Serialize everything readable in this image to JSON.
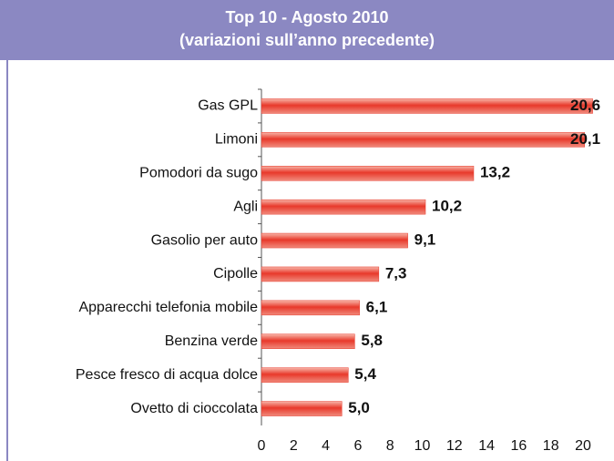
{
  "chart_data": {
    "type": "bar",
    "orientation": "horizontal",
    "title": "Top 10 - Agosto 2010",
    "subtitle": "(variazioni sull’anno precedente)",
    "categories": [
      "Gas GPL",
      "Limoni",
      "Pomodori da sugo",
      "Agli",
      "Gasolio per auto",
      "Cipolle",
      "Apparecchi telefonia mobile",
      "Benzina verde",
      "Pesce fresco di acqua dolce",
      "Ovetto di cioccolata"
    ],
    "values": [
      20.6,
      20.1,
      13.2,
      10.2,
      9.1,
      7.3,
      6.1,
      5.8,
      5.4,
      5.0
    ],
    "value_labels": [
      "20,6",
      "20,1",
      "13,2",
      "10,2",
      "9,1",
      "7,3",
      "6,1",
      "5,8",
      "5,4",
      "5,0"
    ],
    "color": "#e8392b",
    "xlim": [
      0,
      20
    ],
    "xticks": [
      0,
      2,
      4,
      6,
      8,
      10,
      12,
      14,
      16,
      18,
      20
    ]
  }
}
